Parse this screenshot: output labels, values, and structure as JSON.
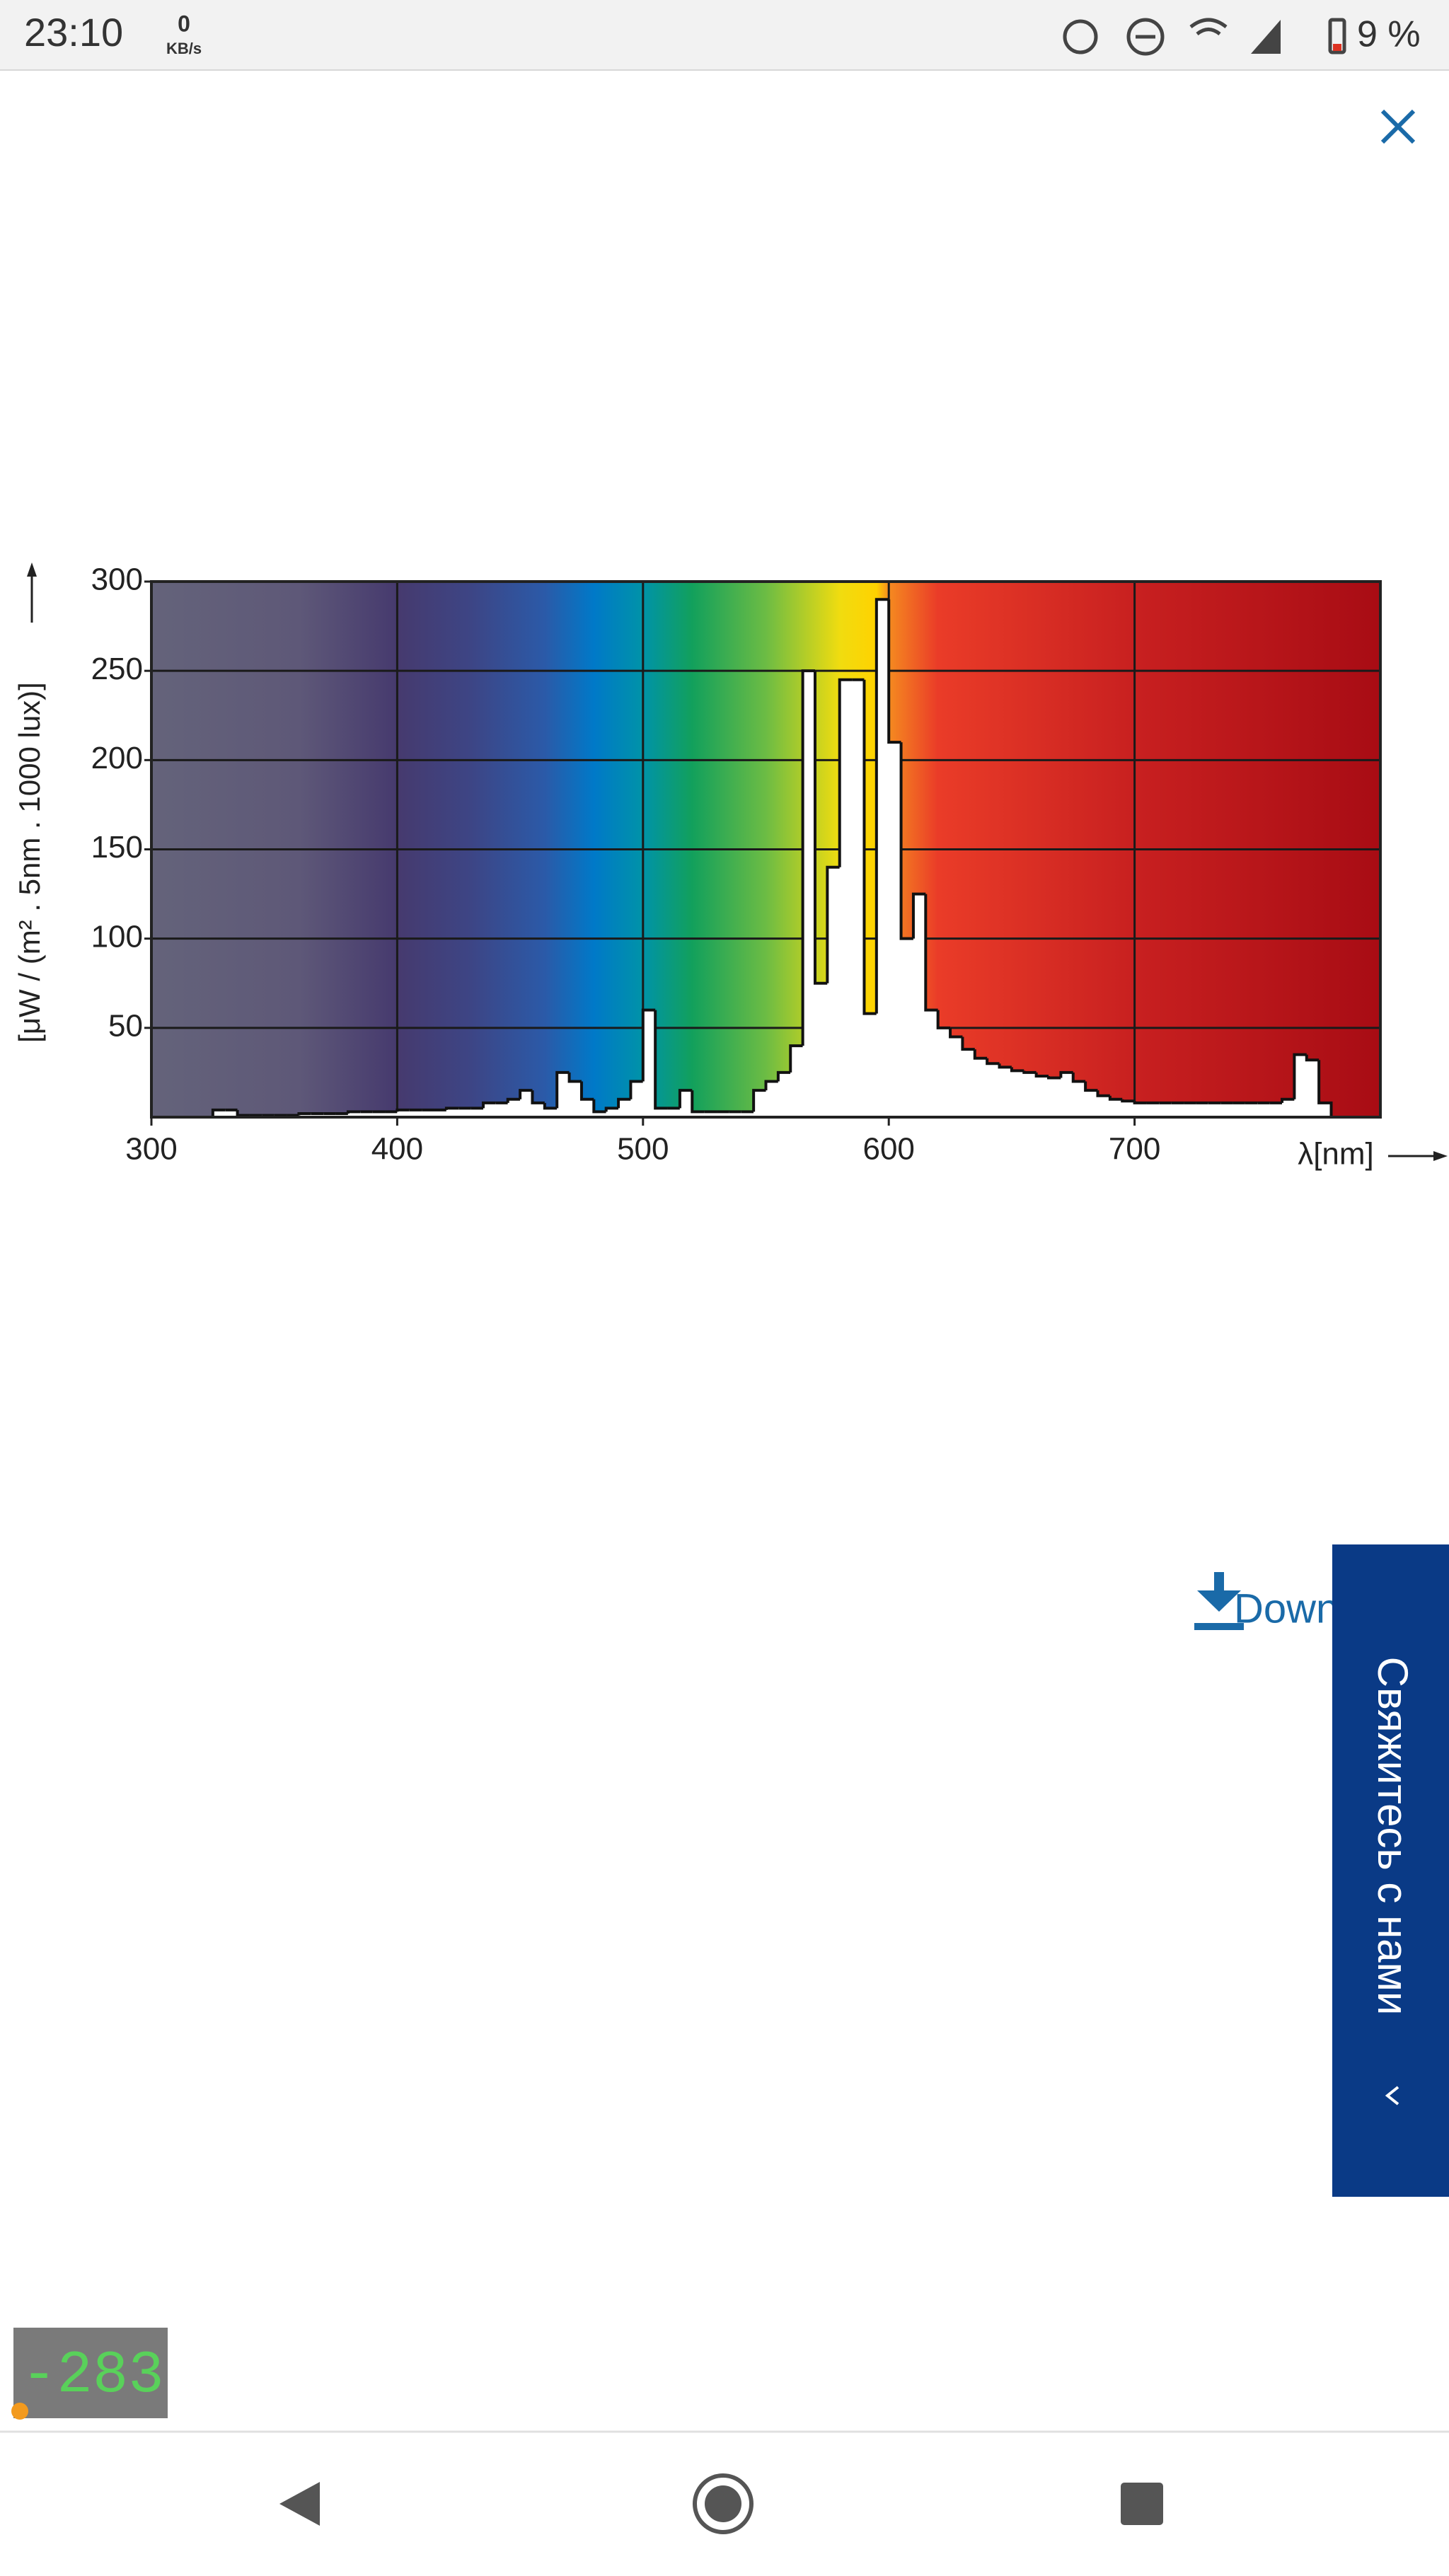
{
  "status_bar": {
    "time": "23:10",
    "net_speed": "0",
    "net_unit": "KB/s",
    "battery": "9 %"
  },
  "chart_data": {
    "type": "histogram",
    "y_label": "[μW / (m² . 5nm . 1000 lux)]",
    "x_label": "λ[nm]",
    "bins": [
      300,
      305,
      310,
      315,
      320,
      325,
      330,
      335,
      340,
      345,
      350,
      355,
      360,
      365,
      370,
      375,
      380,
      385,
      390,
      395,
      400,
      405,
      410,
      415,
      420,
      425,
      430,
      435,
      440,
      445,
      450,
      455,
      460,
      465,
      470,
      475,
      480,
      485,
      490,
      495,
      500,
      505,
      510,
      515,
      520,
      525,
      530,
      535,
      540,
      545,
      550,
      555,
      560,
      565,
      570,
      575,
      580,
      585,
      590,
      595,
      600,
      605,
      610,
      615,
      620,
      625,
      630,
      635,
      640,
      645,
      650,
      655,
      660,
      665,
      670,
      675,
      680,
      685,
      690,
      695,
      700,
      705,
      710,
      715,
      720,
      725,
      730,
      735,
      740,
      745,
      750,
      755,
      760,
      765,
      770,
      775,
      780
    ],
    "values": [
      0,
      0,
      0,
      0,
      0,
      4,
      4,
      1,
      1,
      1,
      1,
      1,
      2,
      2,
      2,
      2,
      3,
      3,
      3,
      3,
      4,
      4,
      4,
      4,
      5,
      5,
      5,
      8,
      8,
      10,
      15,
      8,
      5,
      25,
      20,
      10,
      3,
      5,
      10,
      20,
      60,
      5,
      5,
      15,
      3,
      3,
      3,
      3,
      3,
      15,
      20,
      25,
      40,
      250,
      75,
      140,
      245,
      245,
      58,
      290,
      210,
      100,
      125,
      60,
      50,
      45,
      38,
      33,
      30,
      28,
      26,
      25,
      23,
      22,
      25,
      20,
      15,
      12,
      10,
      9,
      8,
      8,
      8,
      8,
      8,
      8,
      8,
      8,
      8,
      8,
      8,
      8,
      10,
      35,
      32,
      8
    ],
    "color": "#ffffff",
    "xlim": [
      300,
      800
    ],
    "ylim": [
      0,
      300
    ],
    "xticks": [
      300,
      400,
      500,
      600,
      700
    ],
    "yticks": [
      50,
      100,
      150,
      200,
      250,
      300
    ],
    "grid": true
  },
  "download_link": "Download",
  "contact_tab": "Свяжитесь с нами",
  "debug_counter": "-283"
}
